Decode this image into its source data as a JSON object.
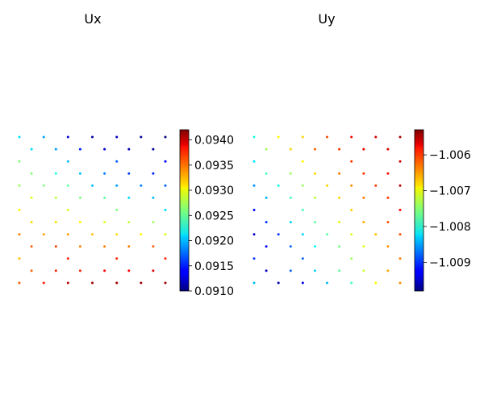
{
  "chart_data": [
    {
      "type": "scatter",
      "title": "Ux",
      "colormap": "jet",
      "axes_visible": false,
      "grid": false,
      "point_size": "small",
      "colorbar": {
        "min": 0.091,
        "max": 0.0942,
        "ticks": [
          0.091,
          0.0915,
          0.092,
          0.0925,
          0.093,
          0.0935,
          0.094
        ],
        "tick_labels": [
          "0.0910",
          "0.0915",
          "0.0920",
          "0.0925",
          "0.0930",
          "0.0935",
          "0.0940"
        ]
      },
      "xlim": [
        0,
        12
      ],
      "ylim": [
        0,
        12
      ],
      "points": [
        [
          0,
          12,
          0.0921
        ],
        [
          2,
          12,
          0.0919
        ],
        [
          4,
          12,
          0.0913
        ],
        [
          6,
          12,
          0.0911
        ],
        [
          8,
          12,
          0.0912
        ],
        [
          10,
          12,
          0.0911
        ],
        [
          12,
          12,
          0.091
        ],
        [
          1,
          11,
          0.0921
        ],
        [
          3,
          11,
          0.0919
        ],
        [
          5,
          11,
          0.0915
        ],
        [
          7,
          11,
          0.0913
        ],
        [
          9,
          11,
          0.0912
        ],
        [
          11,
          11,
          0.0911
        ],
        [
          0,
          10,
          0.0926
        ],
        [
          4,
          10,
          0.092
        ],
        [
          8,
          10,
          0.0917
        ],
        [
          12,
          10,
          0.0914
        ],
        [
          1,
          9,
          0.0926
        ],
        [
          3,
          9,
          0.0923
        ],
        [
          5,
          9,
          0.092
        ],
        [
          7,
          9,
          0.0918
        ],
        [
          9,
          9,
          0.0916
        ],
        [
          11,
          9,
          0.0915
        ],
        [
          0,
          8,
          0.0927
        ],
        [
          2,
          8,
          0.0926
        ],
        [
          4,
          8,
          0.0925
        ],
        [
          6,
          8,
          0.092
        ],
        [
          8,
          8,
          0.0919
        ],
        [
          10,
          8,
          0.0918
        ],
        [
          12,
          8,
          0.0917
        ],
        [
          1,
          7,
          0.0929
        ],
        [
          3,
          7,
          0.0928
        ],
        [
          5,
          7,
          0.0926
        ],
        [
          7,
          7,
          0.0925
        ],
        [
          9,
          7,
          0.0921
        ],
        [
          11,
          7,
          0.092
        ],
        [
          0,
          6,
          0.093
        ],
        [
          4,
          6,
          0.0929
        ],
        [
          8,
          6,
          0.0926
        ],
        [
          12,
          6,
          0.0921
        ],
        [
          1,
          5,
          0.0931
        ],
        [
          3,
          5,
          0.0931
        ],
        [
          5,
          5,
          0.093
        ],
        [
          7,
          5,
          0.0929
        ],
        [
          9,
          5,
          0.0928
        ],
        [
          11,
          5,
          0.0927
        ],
        [
          0,
          4,
          0.0934
        ],
        [
          2,
          4,
          0.0933
        ],
        [
          4,
          4,
          0.0933
        ],
        [
          6,
          4,
          0.0932
        ],
        [
          8,
          4,
          0.0931
        ],
        [
          10,
          4,
          0.093
        ],
        [
          12,
          4,
          0.0929
        ],
        [
          1,
          3,
          0.0935
        ],
        [
          3,
          3,
          0.0936
        ],
        [
          5,
          3,
          0.0934
        ],
        [
          7,
          3,
          0.0934
        ],
        [
          9,
          3,
          0.0934
        ],
        [
          11,
          3,
          0.0935
        ],
        [
          0,
          2,
          0.0932
        ],
        [
          4,
          2,
          0.0937
        ],
        [
          8,
          2,
          0.0937
        ],
        [
          12,
          2,
          0.0937
        ],
        [
          1,
          1,
          0.0935
        ],
        [
          3,
          1,
          0.0937
        ],
        [
          5,
          1,
          0.0937
        ],
        [
          7,
          1,
          0.0938
        ],
        [
          9,
          1,
          0.0938
        ],
        [
          11,
          1,
          0.0939
        ],
        [
          0,
          0,
          0.0935
        ],
        [
          2,
          0,
          0.0937
        ],
        [
          4,
          0,
          0.094
        ],
        [
          6,
          0,
          0.0941
        ],
        [
          8,
          0,
          0.0941
        ],
        [
          10,
          0,
          0.0941
        ],
        [
          12,
          0,
          0.0941
        ]
      ]
    },
    {
      "type": "scatter",
      "title": "Uy",
      "colormap": "jet",
      "axes_visible": false,
      "grid": false,
      "point_size": "small",
      "colorbar": {
        "min": -1.0098,
        "max": -1.0053,
        "ticks": [
          -1.006,
          -1.007,
          -1.008,
          -1.009
        ],
        "tick_labels": [
          "−1.006",
          "−1.007",
          "−1.008",
          "−1.009"
        ]
      },
      "xlim": [
        0,
        12
      ],
      "ylim": [
        0,
        12
      ],
      "points": [
        [
          0,
          12,
          -1.008
        ],
        [
          2,
          12,
          -1.007
        ],
        [
          4,
          12,
          -1.0068
        ],
        [
          6,
          12,
          -1.0062
        ],
        [
          8,
          12,
          -1.0059
        ],
        [
          10,
          12,
          -1.0057
        ],
        [
          12,
          12,
          -1.0055
        ],
        [
          1,
          11,
          -1.0074
        ],
        [
          3,
          11,
          -1.0068
        ],
        [
          5,
          11,
          -1.0063
        ],
        [
          7,
          11,
          -1.0061
        ],
        [
          9,
          11,
          -1.0058
        ],
        [
          11,
          11,
          -1.0057
        ],
        [
          0,
          10,
          -1.0082
        ],
        [
          4,
          10,
          -1.007
        ],
        [
          8,
          10,
          -1.0061
        ],
        [
          12,
          10,
          -1.0057
        ],
        [
          1,
          9,
          -1.0078
        ],
        [
          3,
          9,
          -1.0074
        ],
        [
          5,
          9,
          -1.0068
        ],
        [
          7,
          9,
          -1.0064
        ],
        [
          9,
          9,
          -1.0061
        ],
        [
          11,
          9,
          -1.0059
        ],
        [
          0,
          8,
          -1.0086
        ],
        [
          2,
          8,
          -1.008
        ],
        [
          4,
          8,
          -1.0074
        ],
        [
          6,
          8,
          -1.0068
        ],
        [
          8,
          8,
          -1.0065
        ],
        [
          10,
          8,
          -1.0061
        ],
        [
          12,
          8,
          -1.0056
        ],
        [
          1,
          7,
          -1.0084
        ],
        [
          3,
          7,
          -1.0078
        ],
        [
          5,
          7,
          -1.0073
        ],
        [
          7,
          7,
          -1.0068
        ],
        [
          9,
          7,
          -1.0064
        ],
        [
          11,
          7,
          -1.0061
        ],
        [
          0,
          6,
          -1.0092
        ],
        [
          4,
          6,
          -1.0078
        ],
        [
          8,
          6,
          -1.0068
        ],
        [
          12,
          6,
          -1.0059
        ],
        [
          1,
          5,
          -1.009
        ],
        [
          3,
          5,
          -1.0083
        ],
        [
          5,
          5,
          -1.0077
        ],
        [
          7,
          5,
          -1.0071
        ],
        [
          9,
          5,
          -1.0066
        ],
        [
          11,
          5,
          -1.0062
        ],
        [
          0,
          4,
          -1.0095
        ],
        [
          2,
          4,
          -1.009
        ],
        [
          4,
          4,
          -1.0083
        ],
        [
          6,
          4,
          -1.0077
        ],
        [
          8,
          4,
          -1.0072
        ],
        [
          10,
          4,
          -1.0067
        ],
        [
          12,
          4,
          -1.0062
        ],
        [
          1,
          3,
          -1.0093
        ],
        [
          3,
          3,
          -1.0088
        ],
        [
          5,
          3,
          -1.0081
        ],
        [
          7,
          3,
          -1.0076
        ],
        [
          9,
          3,
          -1.0071
        ],
        [
          11,
          3,
          -1.0065
        ],
        [
          0,
          2,
          -1.009
        ],
        [
          4,
          2,
          -1.0088
        ],
        [
          8,
          2,
          -1.0074
        ],
        [
          12,
          2,
          -1.0064
        ],
        [
          1,
          1,
          -1.0095
        ],
        [
          3,
          1,
          -1.0088
        ],
        [
          5,
          1,
          -1.0083
        ],
        [
          7,
          1,
          -1.0077
        ],
        [
          9,
          1,
          -1.0072
        ],
        [
          11,
          1,
          -1.0066
        ],
        [
          0,
          0,
          -1.0084
        ],
        [
          2,
          0,
          -1.0096
        ],
        [
          4,
          0,
          -1.0093
        ],
        [
          6,
          0,
          -1.0084
        ],
        [
          8,
          0,
          -1.0078
        ],
        [
          10,
          0,
          -1.007
        ],
        [
          12,
          0,
          -1.0065
        ]
      ]
    }
  ]
}
